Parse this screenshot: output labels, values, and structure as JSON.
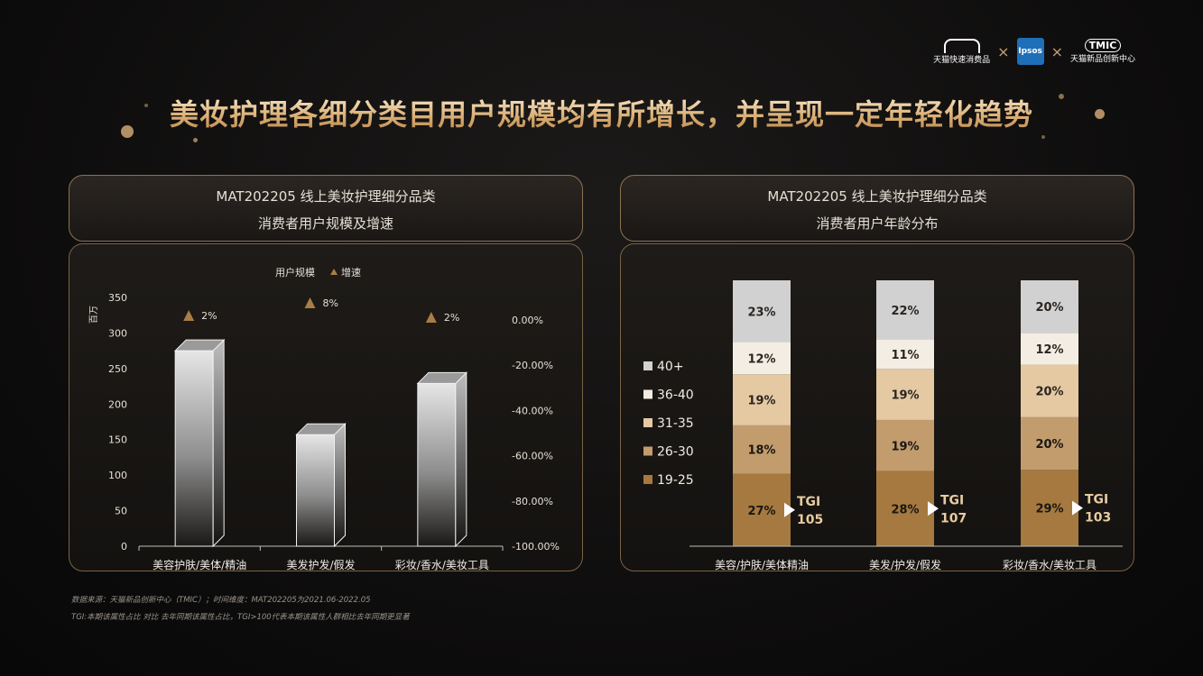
{
  "title": "美妆护理各细分类目用户规模均有所增长，并呈现一定年轻化趋势",
  "logos": {
    "tmall_fast": "天猫快速消费品",
    "ipsos": "Ipsos",
    "tmic_mark": "TMIC",
    "tmic_name": "天猫新品创新中心",
    "separator": "×"
  },
  "left_panel": {
    "header_line1": "MAT202205 线上美妆护理细分品类",
    "header_line2": "消费者用户规模及增速"
  },
  "right_panel": {
    "header_line1": "MAT202205 线上美妆护理细分品类",
    "header_line2": "消费者用户年龄分布"
  },
  "footnotes": {
    "line1": "数据来源：天猫新品创新中心（TMIC）；时间维度：MAT202205为2021.06-2022.05",
    "line2": "TGI:本期该属性占比 对比 去年同期该属性占比，TGI>100代表本期该属性人群相比去年同期更显著"
  },
  "chart_data": [
    {
      "type": "bar",
      "categories": [
        "美容护肤/美体/精油",
        "美发护发/假发",
        "彩妆/香水/美妆工具"
      ],
      "series": [
        {
          "name": "用户规模",
          "axis": "left",
          "values": [
            275,
            157,
            229
          ]
        },
        {
          "name": "增速",
          "axis": "right",
          "marker": "triangle",
          "values": [
            2,
            8,
            2
          ],
          "labels": [
            "2%",
            "8%",
            "2%"
          ]
        }
      ],
      "ylabel": "百万",
      "ylim": [
        0,
        350
      ],
      "yticks": [
        "0",
        "50",
        "100",
        "150",
        "200",
        "250",
        "300",
        "350"
      ],
      "y2ticks": [
        "0.00%",
        "-20.00%",
        "-40.00%",
        "-60.00%",
        "-80.00%",
        "-100.00%"
      ],
      "legend": "top-center",
      "colors": {
        "bar": "#cfcfcf",
        "marker": "#a97c48"
      }
    },
    {
      "type": "bar",
      "stacked": true,
      "categories": [
        "美容/护肤/美体精油",
        "美发/护发/假发",
        "彩妆/香水/美妆工具"
      ],
      "series": [
        {
          "name": "19-25",
          "color": "#a5793f",
          "values": [
            27,
            28,
            29
          ]
        },
        {
          "name": "26-30",
          "color": "#c29c6d",
          "values": [
            18,
            19,
            20
          ]
        },
        {
          "name": "31-35",
          "color": "#e5c9a3",
          "values": [
            19,
            19,
            20
          ]
        },
        {
          "name": "36-40",
          "color": "#f4ede3",
          "values": [
            12,
            11,
            12
          ]
        },
        {
          "name": "40+",
          "color": "#d1d1d1",
          "values": [
            23,
            22,
            20
          ]
        }
      ],
      "tgi_label": "TGI",
      "tgi": [
        "105",
        "107",
        "103"
      ],
      "legend": "left"
    }
  ]
}
